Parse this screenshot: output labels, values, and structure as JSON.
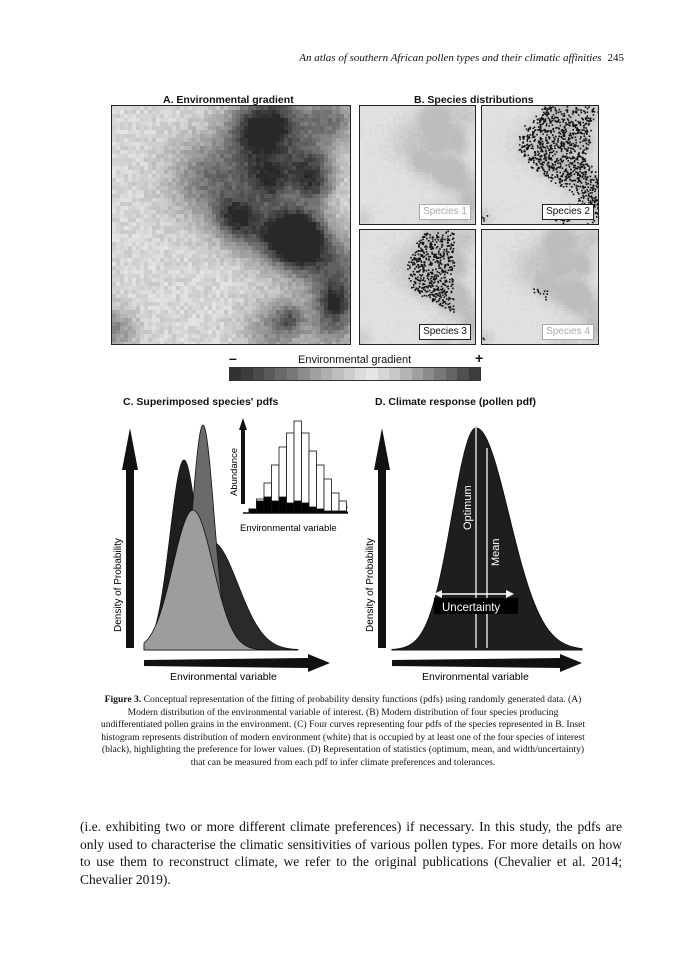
{
  "running_head": {
    "title": "An atlas of southern African pollen types and their climatic affinities",
    "page": "245"
  },
  "panel_a": {
    "title": "A. Environmental gradient"
  },
  "panel_b": {
    "title": "B. Species distributions",
    "species_labels": [
      "Species 1",
      "Species 2",
      "Species 3",
      "Species 4"
    ]
  },
  "gradient_bar": {
    "label": "Environmental gradient",
    "minus": "–",
    "plus": "+"
  },
  "panel_c": {
    "title": "C. Superimposed species' pdfs",
    "ylabel": "Density of Probability",
    "xlabel": "Environmental variable",
    "inset_ylabel": "Abundance",
    "inset_xlabel": "Environmental variable"
  },
  "panel_d": {
    "title": "D. Climate response (pollen pdf)",
    "ylabel": "Density of Probability",
    "xlabel": "Environmental variable",
    "label_optimum": "Optimum",
    "label_mean": "Mean",
    "label_uncertainty": "Uncertainty"
  },
  "caption": {
    "label": "Figure 3.",
    "text": "Conceptual representation of the fitting of probability density functions (pdfs) using randomly generated data. (A) Modern distribution of the environmental variable of interest. (B) Modern distribution of four species producing undifferentiated pollen grains in the environment. (C) Four curves representing four pdfs of the species represented in B. Inset histogram represents distribution of modern environment (white) that is occupied by at least one of the four species of interest (black), highlighting the preference for lower values. (D) Representation of statistics (optimum, mean, and width/uncertainty) that can be measured from each pdf to infer climate preferences and tolerances."
  },
  "body_text": "(i.e. exhibiting two or more different climate preferences) if necessary. In this study, the pdfs are only used to characterise the climatic sensitivities of various pollen types. For more details on how to use them to reconstruct climate, we refer to the original publications (Chevalier et al. 2014; Chevalier 2019).",
  "colors": {
    "dark": "#1c1c1c",
    "mid": "#5a5a5a",
    "light": "#a9a9a9",
    "white": "#ffffff"
  }
}
